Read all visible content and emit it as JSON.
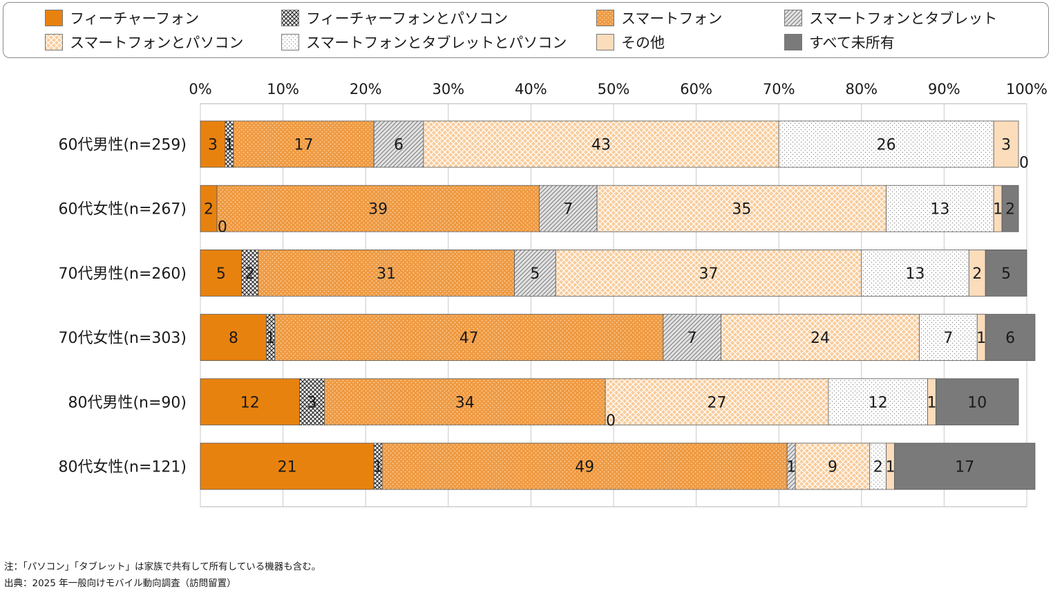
{
  "chart_data": {
    "type": "bar",
    "orientation": "horizontal",
    "stacked": true,
    "xlim": [
      0,
      100
    ],
    "x_ticks": [
      "0%",
      "10%",
      "20%",
      "30%",
      "40%",
      "50%",
      "60%",
      "70%",
      "80%",
      "90%",
      "100%"
    ],
    "categories": [
      "60代男性(n=259)",
      "60代女性(n=267)",
      "70代男性(n=260)",
      "70代女性(n=303)",
      "80代男性(n=90)",
      "80代女性(n=121)"
    ],
    "series": [
      {
        "name": "フィーチャーフォン",
        "color": "#e8820f",
        "pattern": "solid",
        "values": [
          3,
          2,
          5,
          8,
          12,
          21
        ]
      },
      {
        "name": "フィーチャーフォンとパソコン",
        "color": "#e8820f",
        "pattern": "check",
        "values": [
          1,
          0,
          2,
          1,
          3,
          1
        ]
      },
      {
        "name": "スマートフォン",
        "color": "#ef9a42",
        "pattern": "dots-white",
        "values": [
          17,
          39,
          31,
          47,
          34,
          49
        ]
      },
      {
        "name": "スマートフォンとタブレット",
        "color": "#d4d4d4",
        "pattern": "diag",
        "values": [
          6,
          7,
          5,
          7,
          0,
          1
        ]
      },
      {
        "name": "スマートフォンとパソコン",
        "color": "#f9cc9b",
        "pattern": "lattice",
        "values": [
          43,
          35,
          37,
          24,
          27,
          9
        ]
      },
      {
        "name": "スマートフォンとタブレットとパソコン",
        "color": "#ffffff",
        "pattern": "dots-fine",
        "values": [
          26,
          13,
          13,
          7,
          12,
          2
        ]
      },
      {
        "name": "その他",
        "color": "#fbdcbb",
        "pattern": "solid",
        "values": [
          3,
          1,
          2,
          1,
          1,
          1
        ]
      },
      {
        "name": "すべて未所有",
        "color": "#7a7a7a",
        "pattern": "solid",
        "values": [
          0,
          2,
          5,
          6,
          10,
          17
        ]
      }
    ]
  },
  "notes": {
    "note": "注：「パソコン」「タブレット」は家族で共有して所有している機器も含む。",
    "source": "出典：2025 年一般向けモバイル動向調査（訪問留置）"
  }
}
